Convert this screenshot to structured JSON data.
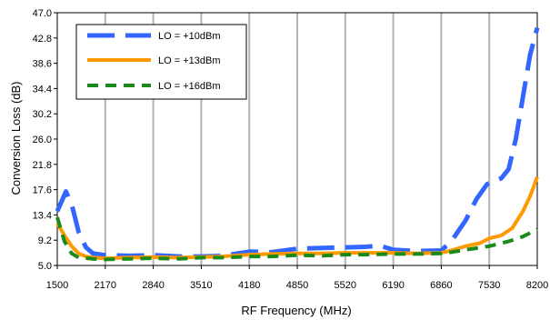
{
  "chart_data": {
    "type": "line",
    "xlabel": "RF Frequency (MHz)",
    "ylabel": "Conversion Loss (dB)",
    "xlim": [
      1500,
      8200
    ],
    "ylim": [
      5.0,
      47.0
    ],
    "x_ticks": [
      "1500",
      "2170",
      "2840",
      "3510",
      "4180",
      "4850",
      "5520",
      "6190",
      "6860",
      "7530",
      "8200"
    ],
    "y_ticks": [
      "47.0",
      "42.8",
      "38.6",
      "34.4",
      "30.2",
      "26.0",
      "21.8",
      "17.6",
      "13.4",
      "9.2",
      "5.0"
    ],
    "grid": "vertical",
    "legend_position": "top-left",
    "series": [
      {
        "name": "LO = +10dBm",
        "color": "#3366ff",
        "dash": "long-dash",
        "points": [
          [
            1500,
            14.0
          ],
          [
            1620,
            17.3
          ],
          [
            1700,
            15.2
          ],
          [
            1800,
            10.5
          ],
          [
            1900,
            8.0
          ],
          [
            2000,
            7.0
          ],
          [
            2170,
            6.7
          ],
          [
            2500,
            6.6
          ],
          [
            2840,
            6.7
          ],
          [
            3200,
            6.5
          ],
          [
            3510,
            6.5
          ],
          [
            3800,
            6.6
          ],
          [
            4180,
            7.3
          ],
          [
            4500,
            7.2
          ],
          [
            4850,
            7.8
          ],
          [
            5200,
            7.9
          ],
          [
            5520,
            8.0
          ],
          [
            5800,
            8.1
          ],
          [
            6000,
            8.3
          ],
          [
            6190,
            7.6
          ],
          [
            6500,
            7.4
          ],
          [
            6860,
            7.5
          ],
          [
            7000,
            9.0
          ],
          [
            7200,
            12.5
          ],
          [
            7350,
            16.0
          ],
          [
            7500,
            18.5
          ],
          [
            7700,
            19.5
          ],
          [
            7800,
            21.0
          ],
          [
            7900,
            26.0
          ],
          [
            8000,
            33.0
          ],
          [
            8100,
            40.0
          ],
          [
            8200,
            44.5
          ]
        ]
      },
      {
        "name": "LO = +13dBm",
        "color": "#ff9900",
        "dash": "solid",
        "points": [
          [
            1500,
            12.0
          ],
          [
            1600,
            10.0
          ],
          [
            1700,
            8.2
          ],
          [
            1800,
            7.0
          ],
          [
            1900,
            6.5
          ],
          [
            2000,
            6.3
          ],
          [
            2170,
            6.2
          ],
          [
            2500,
            6.3
          ],
          [
            2840,
            6.4
          ],
          [
            3200,
            6.3
          ],
          [
            3510,
            6.4
          ],
          [
            3800,
            6.5
          ],
          [
            4180,
            6.8
          ],
          [
            4500,
            6.9
          ],
          [
            4850,
            7.0
          ],
          [
            5200,
            7.0
          ],
          [
            5520,
            7.1
          ],
          [
            5800,
            7.1
          ],
          [
            6190,
            7.1
          ],
          [
            6500,
            7.0
          ],
          [
            6860,
            7.1
          ],
          [
            7000,
            7.5
          ],
          [
            7200,
            8.2
          ],
          [
            7400,
            8.7
          ],
          [
            7530,
            9.5
          ],
          [
            7700,
            10.0
          ],
          [
            7850,
            11.2
          ],
          [
            8000,
            14.0
          ],
          [
            8100,
            16.5
          ],
          [
            8200,
            19.7
          ]
        ]
      },
      {
        "name": "LO = +16dBm",
        "color": "#1a8a1a",
        "dash": "short-dash",
        "points": [
          [
            1500,
            13.0
          ],
          [
            1600,
            9.0
          ],
          [
            1700,
            7.0
          ],
          [
            1800,
            6.3
          ],
          [
            2000,
            6.1
          ],
          [
            2170,
            6.0
          ],
          [
            2500,
            6.1
          ],
          [
            2840,
            6.2
          ],
          [
            3200,
            6.1
          ],
          [
            3510,
            6.3
          ],
          [
            3800,
            6.3
          ],
          [
            4180,
            6.5
          ],
          [
            4500,
            6.5
          ],
          [
            4850,
            6.7
          ],
          [
            5200,
            6.6
          ],
          [
            5520,
            6.8
          ],
          [
            5800,
            6.8
          ],
          [
            6190,
            6.9
          ],
          [
            6500,
            6.9
          ],
          [
            6860,
            7.0
          ],
          [
            7000,
            7.2
          ],
          [
            7200,
            7.6
          ],
          [
            7530,
            8.2
          ],
          [
            7800,
            9.0
          ],
          [
            8000,
            9.8
          ],
          [
            8200,
            11.0
          ]
        ]
      }
    ]
  }
}
